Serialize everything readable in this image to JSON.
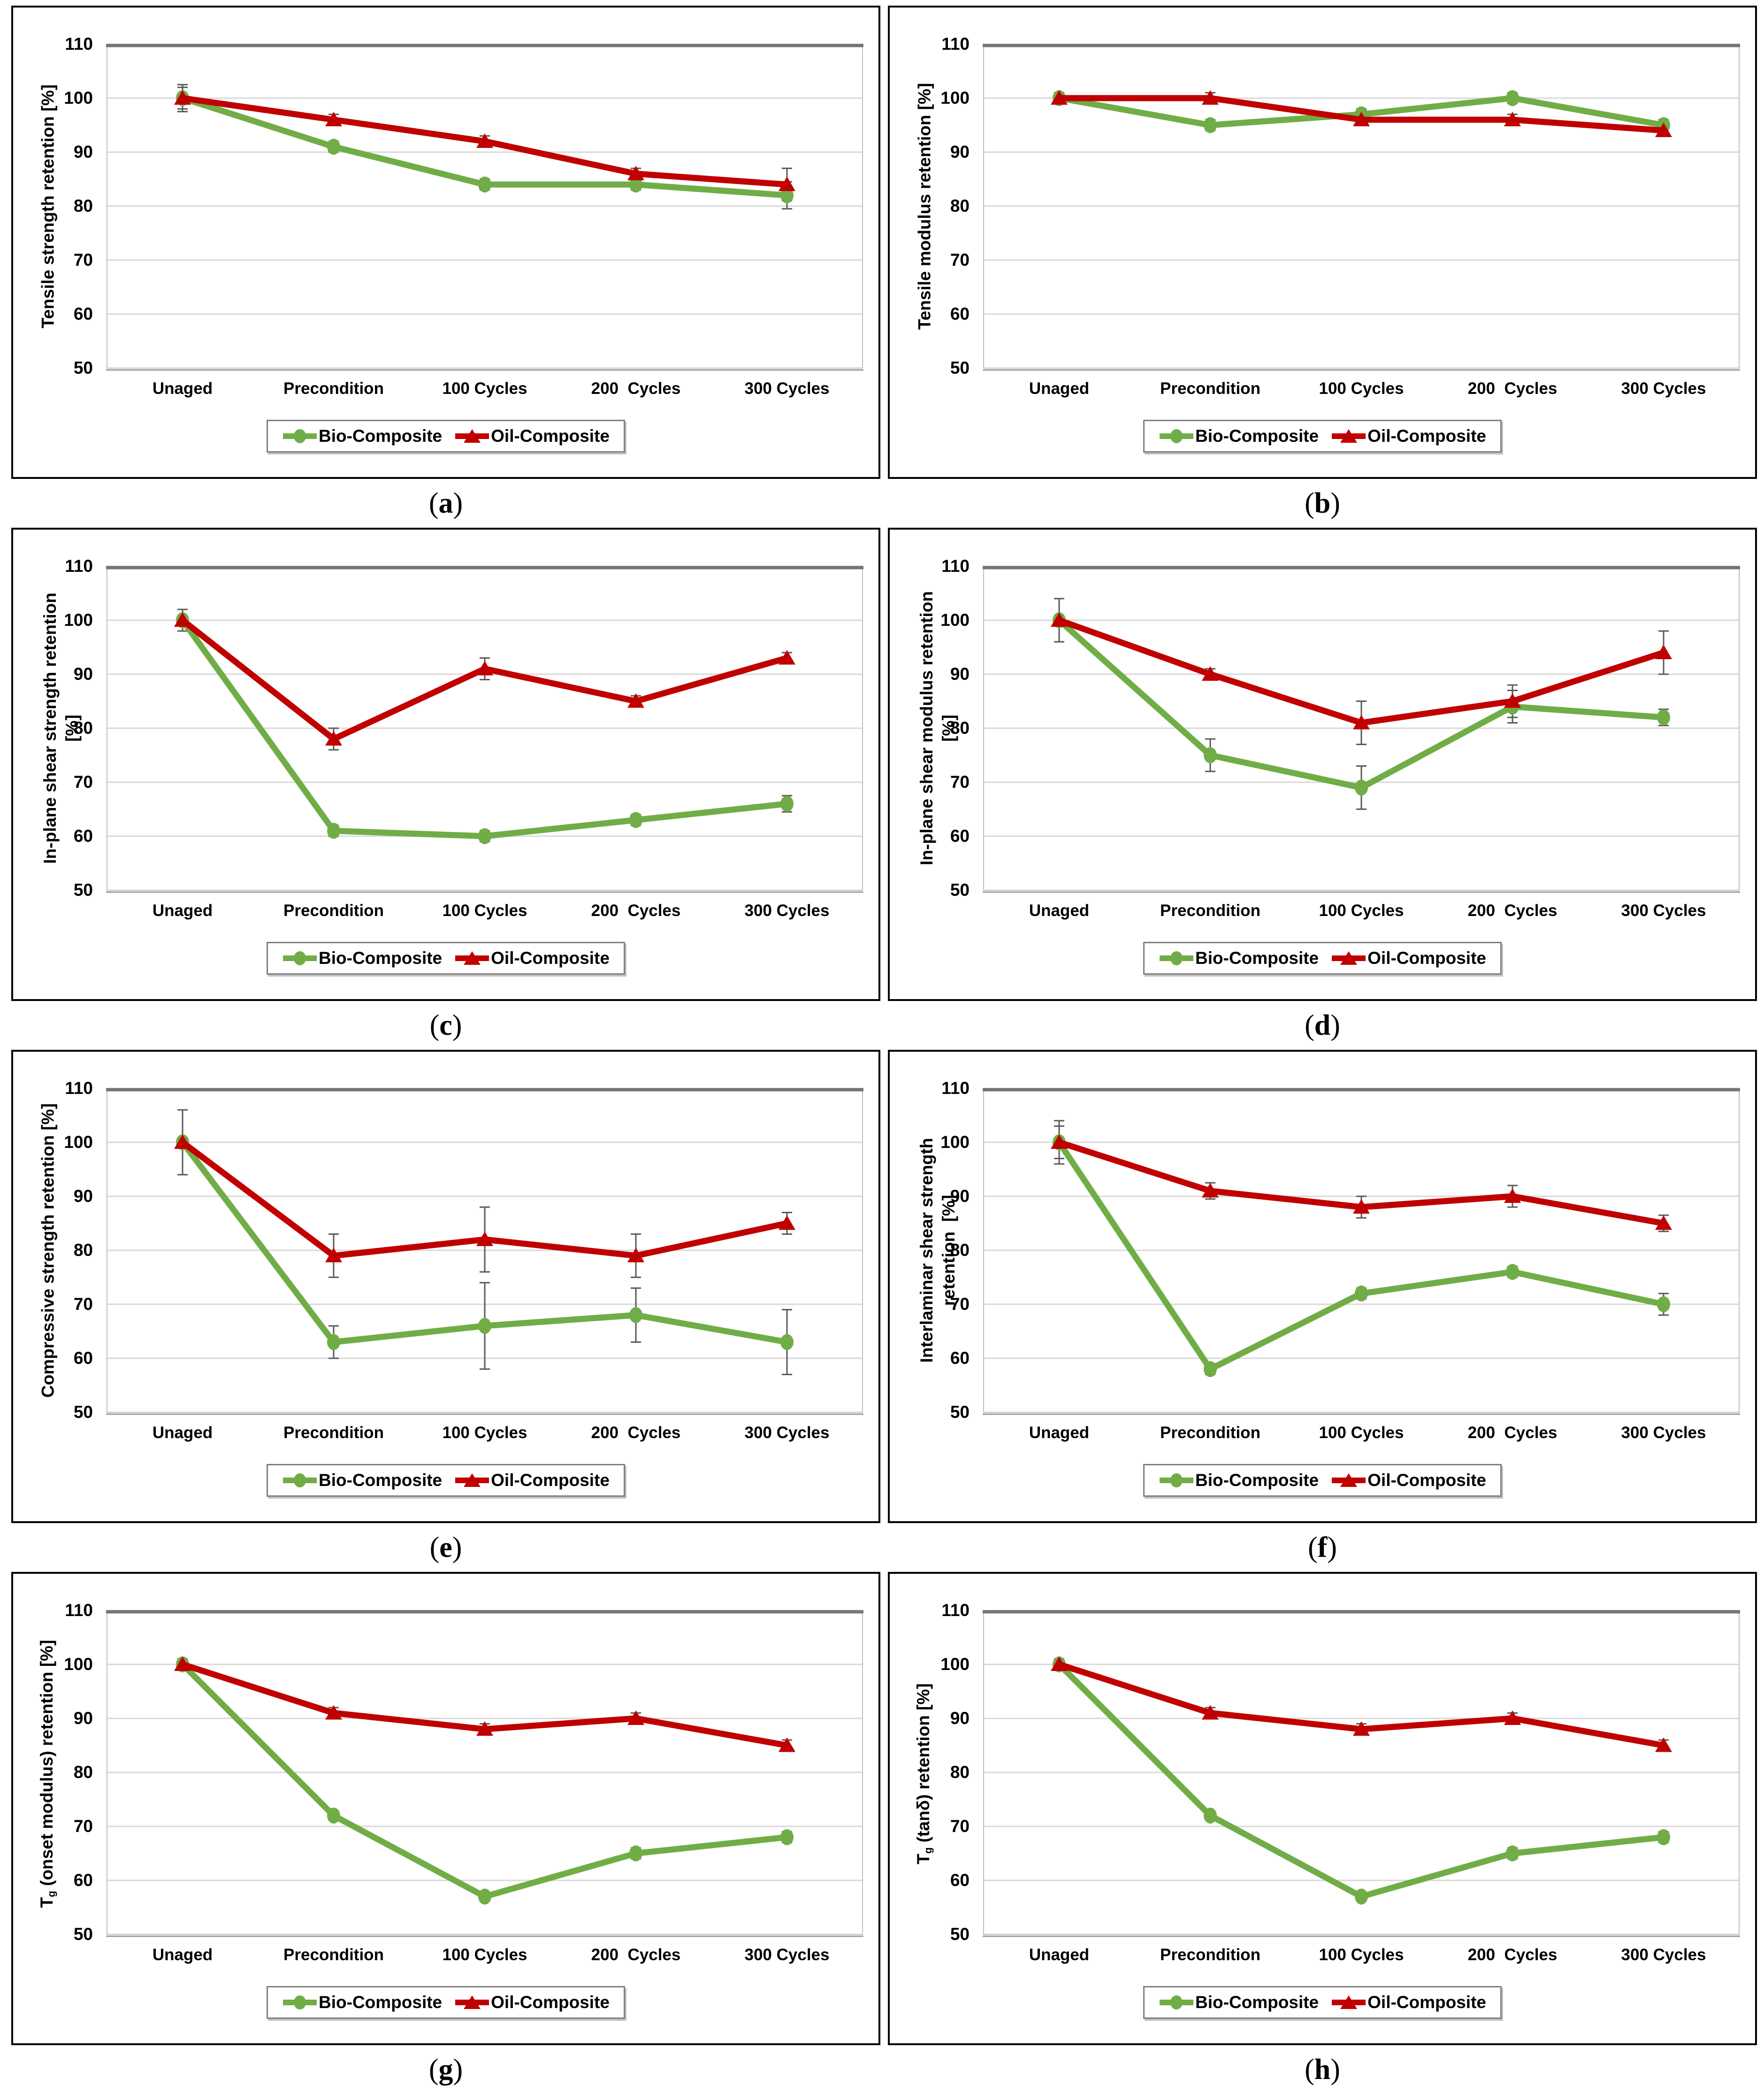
{
  "figure": {
    "background": "#ffffff",
    "colors": {
      "bio_green": "#70AD47",
      "oil_red": "#C00000",
      "gridline": "#D9D9D9",
      "plot_border": "#BFBFBF",
      "plot_top_border": "#757575",
      "error_bar": "#595959",
      "panel_border": "#000000",
      "legend_border": "#7f7f7f"
    },
    "legend_items": [
      "Bio-Composite",
      "Oil-Composite"
    ]
  },
  "chart_data": [
    {
      "id": "a",
      "type": "line",
      "caption": "(a)",
      "caption_letter": "a",
      "ylabel_lines": [
        [
          {
            "t": "Tensile strength retention [%]"
          }
        ]
      ],
      "categories": [
        "Unaged",
        "Precondition",
        "100 Cycles",
        "200  Cycles",
        "300 Cycles"
      ],
      "ylim": [
        50,
        110
      ],
      "yticks": [
        110,
        100,
        90,
        80,
        70,
        60,
        50
      ],
      "grid": true,
      "legend_position": "bottom",
      "series": [
        {
          "name": "Bio-Composite",
          "marker": "circle",
          "color": "#70AD47",
          "values": [
            100,
            91,
            84,
            84,
            82
          ],
          "err": [
            2.5,
            1,
            1,
            1,
            2.5
          ]
        },
        {
          "name": "Oil-Composite",
          "marker": "triangle",
          "color": "#C00000",
          "values": [
            100,
            96,
            92,
            86,
            84
          ],
          "err": [
            2,
            1,
            1,
            1,
            3
          ]
        }
      ]
    },
    {
      "id": "b",
      "type": "line",
      "caption": "(b)",
      "caption_letter": "b",
      "ylabel_lines": [
        [
          {
            "t": "Tensile modulus retention [%]"
          }
        ]
      ],
      "categories": [
        "Unaged",
        "Precondition",
        "100 Cycles",
        "200  Cycles",
        "300 Cycles"
      ],
      "ylim": [
        50,
        110
      ],
      "yticks": [
        110,
        100,
        90,
        80,
        70,
        60,
        50
      ],
      "grid": true,
      "legend_position": "bottom",
      "series": [
        {
          "name": "Bio-Composite",
          "marker": "circle",
          "color": "#70AD47",
          "values": [
            100,
            95,
            97,
            100,
            95
          ],
          "err": [
            1,
            1,
            1,
            1,
            1
          ]
        },
        {
          "name": "Oil-Composite",
          "marker": "triangle",
          "color": "#C00000",
          "values": [
            100,
            100,
            96,
            96,
            94
          ],
          "err": [
            1,
            1,
            1,
            1,
            1
          ]
        }
      ]
    },
    {
      "id": "c",
      "type": "line",
      "caption": "(c)",
      "caption_letter": "c",
      "ylabel_lines": [
        [
          {
            "t": "In-plane shear strength retention"
          }
        ],
        [
          {
            "t": "[%]"
          }
        ]
      ],
      "categories": [
        "Unaged",
        "Precondition",
        "100 Cycles",
        "200  Cycles",
        "300 Cycles"
      ],
      "ylim": [
        50,
        110
      ],
      "yticks": [
        110,
        100,
        90,
        80,
        70,
        60,
        50
      ],
      "grid": true,
      "legend_position": "bottom",
      "series": [
        {
          "name": "Bio-Composite",
          "marker": "circle",
          "color": "#70AD47",
          "values": [
            100,
            61,
            60,
            63,
            66
          ],
          "err": [
            2,
            1,
            1,
            1,
            1.5
          ]
        },
        {
          "name": "Oil-Composite",
          "marker": "triangle",
          "color": "#C00000",
          "values": [
            100,
            78,
            91,
            85,
            93
          ],
          "err": [
            2,
            2,
            2,
            1,
            1
          ]
        }
      ]
    },
    {
      "id": "d",
      "type": "line",
      "caption": "(d)",
      "caption_letter": "d",
      "ylabel_lines": [
        [
          {
            "t": "In-plane shear modulus retention"
          }
        ],
        [
          {
            "t": "[%]"
          }
        ]
      ],
      "categories": [
        "Unaged",
        "Precondition",
        "100 Cycles",
        "200  Cycles",
        "300 Cycles"
      ],
      "ylim": [
        50,
        110
      ],
      "yticks": [
        110,
        100,
        90,
        80,
        70,
        60,
        50
      ],
      "grid": true,
      "legend_position": "bottom",
      "series": [
        {
          "name": "Bio-Composite",
          "marker": "circle",
          "color": "#70AD47",
          "values": [
            100,
            75,
            69,
            84,
            82
          ],
          "err": [
            4,
            3,
            4,
            3,
            1.5
          ]
        },
        {
          "name": "Oil-Composite",
          "marker": "triangle",
          "color": "#C00000",
          "values": [
            100,
            90,
            81,
            85,
            94
          ],
          "err": [
            4,
            1,
            4,
            3,
            4
          ]
        }
      ]
    },
    {
      "id": "e",
      "type": "line",
      "caption": "(e)",
      "caption_letter": "e",
      "ylabel_lines": [
        [
          {
            "t": "Compressive strength retention [%]"
          }
        ]
      ],
      "categories": [
        "Unaged",
        "Precondition",
        "100 Cycles",
        "200  Cycles",
        "300 Cycles"
      ],
      "ylim": [
        50,
        110
      ],
      "yticks": [
        110,
        100,
        90,
        80,
        70,
        60,
        50
      ],
      "grid": true,
      "legend_position": "bottom",
      "series": [
        {
          "name": "Bio-Composite",
          "marker": "circle",
          "color": "#70AD47",
          "values": [
            100,
            63,
            66,
            68,
            63
          ],
          "err": [
            6,
            3,
            8,
            5,
            6
          ]
        },
        {
          "name": "Oil-Composite",
          "marker": "triangle",
          "color": "#C00000",
          "values": [
            100,
            79,
            82,
            79,
            85
          ],
          "err": [
            6,
            4,
            6,
            4,
            2
          ]
        }
      ]
    },
    {
      "id": "f",
      "type": "line",
      "caption": "(f)",
      "caption_letter": "f",
      "ylabel_lines": [
        [
          {
            "t": "Interlaminar shear strength"
          }
        ],
        [
          {
            "t": "retention  [%]"
          }
        ]
      ],
      "categories": [
        "Unaged",
        "Precondition",
        "100 Cycles",
        "200  Cycles",
        "300 Cycles"
      ],
      "ylim": [
        50,
        110
      ],
      "yticks": [
        110,
        100,
        90,
        80,
        70,
        60,
        50
      ],
      "grid": true,
      "legend_position": "bottom",
      "series": [
        {
          "name": "Bio-Composite",
          "marker": "circle",
          "color": "#70AD47",
          "values": [
            100,
            58,
            72,
            76,
            70
          ],
          "err": [
            3,
            1,
            1,
            1,
            2
          ]
        },
        {
          "name": "Oil-Composite",
          "marker": "triangle",
          "color": "#C00000",
          "values": [
            100,
            91,
            88,
            90,
            85
          ],
          "err": [
            4,
            1.5,
            2,
            2,
            1.5
          ]
        }
      ]
    },
    {
      "id": "g",
      "type": "line",
      "caption": "(g)",
      "caption_letter": "g",
      "ylabel_lines": [
        [
          {
            "t": "T"
          },
          {
            "t": "g",
            "sub": true
          },
          {
            "t": " (onset modulus) retention [%]"
          }
        ]
      ],
      "categories": [
        "Unaged",
        "Precondition",
        "100 Cycles",
        "200  Cycles",
        "300 Cycles"
      ],
      "ylim": [
        50,
        110
      ],
      "yticks": [
        110,
        100,
        90,
        80,
        70,
        60,
        50
      ],
      "grid": true,
      "legend_position": "bottom",
      "series": [
        {
          "name": "Bio-Composite",
          "marker": "circle",
          "color": "#70AD47",
          "values": [
            100,
            72,
            57,
            65,
            68
          ],
          "err": [
            1,
            0.5,
            0.5,
            1,
            1
          ]
        },
        {
          "name": "Oil-Composite",
          "marker": "triangle",
          "color": "#C00000",
          "values": [
            100,
            91,
            88,
            90,
            85
          ],
          "err": [
            1,
            1,
            1,
            1,
            1
          ]
        }
      ]
    },
    {
      "id": "h",
      "type": "line",
      "caption": "(h)",
      "caption_letter": "h",
      "ylabel_lines": [
        [
          {
            "t": "T"
          },
          {
            "t": "g",
            "sub": true
          },
          {
            "t": " (tanδ) retention [%]"
          }
        ]
      ],
      "categories": [
        "Unaged",
        "Precondition",
        "100 Cycles",
        "200  Cycles",
        "300 Cycles"
      ],
      "ylim": [
        50,
        110
      ],
      "yticks": [
        110,
        100,
        90,
        80,
        70,
        60,
        50
      ],
      "grid": true,
      "legend_position": "bottom",
      "series": [
        {
          "name": "Bio-Composite",
          "marker": "circle",
          "color": "#70AD47",
          "values": [
            100,
            72,
            57,
            65,
            68
          ],
          "err": [
            1,
            0.5,
            0.5,
            1,
            1
          ]
        },
        {
          "name": "Oil-Composite",
          "marker": "triangle",
          "color": "#C00000",
          "values": [
            100,
            91,
            88,
            90,
            85
          ],
          "err": [
            1,
            1,
            1,
            1,
            1
          ]
        }
      ]
    }
  ]
}
